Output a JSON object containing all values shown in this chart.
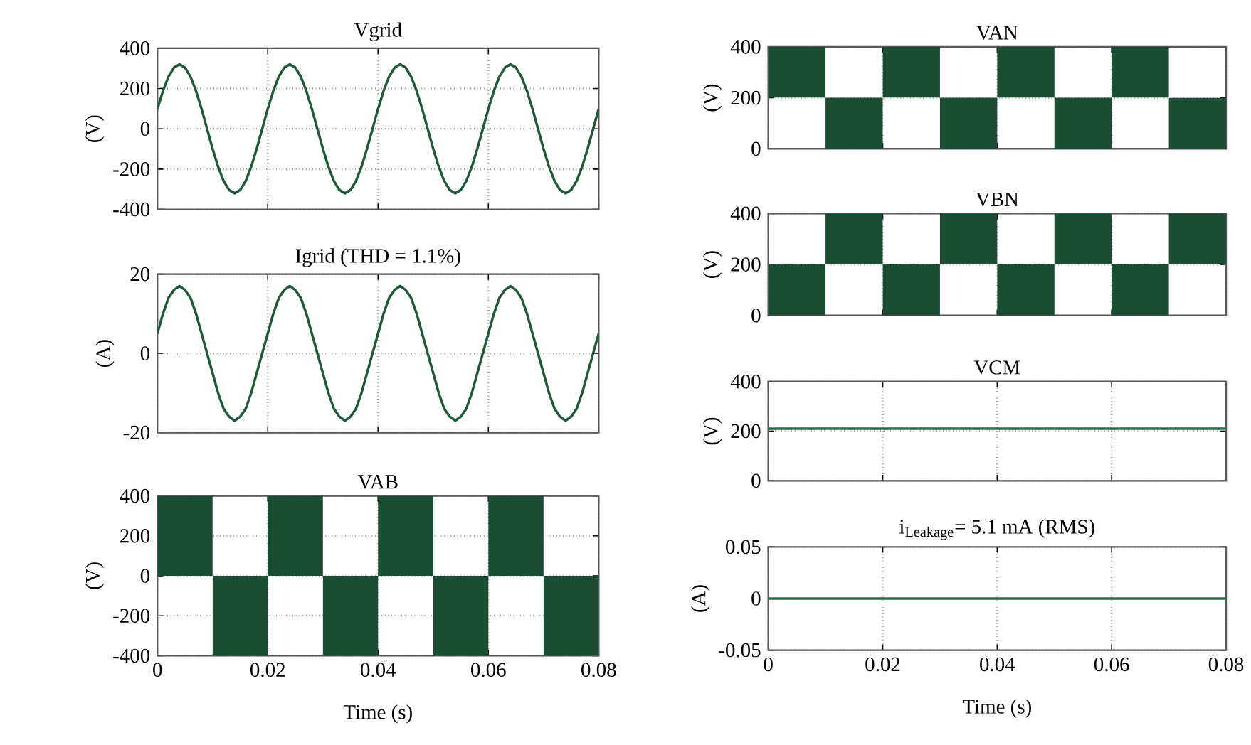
{
  "chart_data": [
    {
      "type": "line",
      "title": "Vgrid",
      "ylabel": "(V)",
      "tick_labels": "y",
      "grid": true,
      "xlim": [
        0,
        0.08
      ],
      "xticks": [
        0,
        0.02,
        0.04,
        0.06,
        0.08
      ],
      "ylim": [
        -400,
        400
      ],
      "yticks": [
        -400,
        -200,
        0,
        200,
        400
      ],
      "x": [
        0,
        0.001,
        0.002,
        0.003,
        0.004,
        0.005,
        0.006,
        0.007,
        0.008,
        0.009,
        0.01,
        0.011,
        0.012,
        0.013,
        0.014,
        0.015,
        0.016,
        0.017,
        0.018,
        0.019,
        0.02,
        0.021,
        0.022,
        0.023,
        0.024,
        0.025,
        0.026,
        0.027,
        0.028,
        0.029,
        0.03,
        0.031,
        0.032,
        0.033,
        0.034,
        0.035,
        0.036,
        0.037,
        0.038,
        0.039,
        0.04,
        0.041,
        0.042,
        0.043,
        0.044,
        0.045,
        0.046,
        0.047,
        0.048,
        0.049,
        0.05,
        0.051,
        0.052,
        0.053,
        0.054,
        0.055,
        0.056,
        0.057,
        0.058,
        0.059,
        0.06,
        0.061,
        0.062,
        0.063,
        0.064,
        0.065,
        0.066,
        0.067,
        0.068,
        0.069,
        0.07,
        0.071,
        0.072,
        0.073,
        0.074,
        0.075,
        0.076,
        0.077,
        0.078,
        0.079,
        0.08
      ],
      "series": [
        {
          "color": "#1e5a3a",
          "values": [
            99,
            188,
            259,
            304,
            320,
            304,
            259,
            188,
            99,
            0,
            -99,
            -188,
            -259,
            -304,
            -320,
            -304,
            -259,
            -188,
            -99,
            0,
            99,
            188,
            259,
            304,
            320,
            304,
            259,
            188,
            99,
            0,
            -99,
            -188,
            -259,
            -304,
            -320,
            -304,
            -259,
            -188,
            -99,
            0,
            99,
            188,
            259,
            304,
            320,
            304,
            259,
            188,
            99,
            0,
            -99,
            -188,
            -259,
            -304,
            -320,
            -304,
            -259,
            -188,
            -99,
            0,
            99,
            188,
            259,
            304,
            320,
            304,
            259,
            188,
            99,
            0,
            -99,
            -188,
            -259,
            -304,
            -320,
            -304,
            -259,
            -188,
            -99,
            0,
            99
          ]
        }
      ]
    },
    {
      "type": "line",
      "title": "Igrid (THD = 1.1%)",
      "ylabel": "(A)",
      "tick_labels": "y",
      "grid": true,
      "xlim": [
        0,
        0.08
      ],
      "xticks": [
        0,
        0.02,
        0.04,
        0.06,
        0.08
      ],
      "ylim": [
        -20,
        20
      ],
      "yticks": [
        -20,
        0,
        20
      ],
      "x": [
        0,
        0.001,
        0.002,
        0.003,
        0.004,
        0.005,
        0.006,
        0.007,
        0.008,
        0.009,
        0.01,
        0.011,
        0.012,
        0.013,
        0.014,
        0.015,
        0.016,
        0.017,
        0.018,
        0.019,
        0.02,
        0.021,
        0.022,
        0.023,
        0.024,
        0.025,
        0.026,
        0.027,
        0.028,
        0.029,
        0.03,
        0.031,
        0.032,
        0.033,
        0.034,
        0.035,
        0.036,
        0.037,
        0.038,
        0.039,
        0.04,
        0.041,
        0.042,
        0.043,
        0.044,
        0.045,
        0.046,
        0.047,
        0.048,
        0.049,
        0.05,
        0.051,
        0.052,
        0.053,
        0.054,
        0.055,
        0.056,
        0.057,
        0.058,
        0.059,
        0.06,
        0.061,
        0.062,
        0.063,
        0.064,
        0.065,
        0.066,
        0.067,
        0.068,
        0.069,
        0.07,
        0.071,
        0.072,
        0.073,
        0.074,
        0.075,
        0.076,
        0.077,
        0.078,
        0.079,
        0.08
      ],
      "series": [
        {
          "color": "#1e5a3a",
          "values": [
            5,
            10,
            14,
            16,
            17,
            16,
            14,
            10,
            5,
            0,
            -5,
            -10,
            -14,
            -16,
            -17,
            -16,
            -14,
            -10,
            -5,
            0,
            5,
            10,
            14,
            16,
            17,
            16,
            14,
            10,
            5,
            0,
            -5,
            -10,
            -14,
            -16,
            -17,
            -16,
            -14,
            -10,
            -5,
            0,
            5,
            10,
            14,
            16,
            17,
            16,
            14,
            10,
            5,
            0,
            -5,
            -10,
            -14,
            -16,
            -17,
            -16,
            -14,
            -10,
            -5,
            0,
            5,
            10,
            14,
            16,
            17,
            16,
            14,
            10,
            5,
            0,
            -5,
            -10,
            -14,
            -16,
            -17,
            -16,
            -14,
            -10,
            -5,
            0,
            5
          ]
        }
      ]
    },
    {
      "type": "bar",
      "title": "VAB",
      "ylabel": "(V)",
      "xlabel": "Time (s)",
      "grid": true,
      "xlim": [
        0,
        0.08
      ],
      "xticks": [
        0,
        0.02,
        0.04,
        0.06,
        0.08
      ],
      "ylim": [
        -400,
        400
      ],
      "yticks": [
        -400,
        -200,
        0,
        200,
        400
      ],
      "color": "#1a4d33",
      "x": [
        0.005,
        0.015,
        0.025,
        0.035,
        0.045,
        0.055,
        0.065,
        0.075
      ],
      "base": [
        0,
        -400,
        0,
        -400,
        0,
        -400,
        0,
        -400
      ],
      "values": [
        400,
        400,
        400,
        400,
        400,
        400,
        400,
        400
      ]
    },
    {
      "type": "bar",
      "title": "VAN",
      "ylabel": "(V)",
      "tick_labels": "y",
      "grid": true,
      "xlim": [
        0,
        0.08
      ],
      "xticks": [
        0,
        0.02,
        0.04,
        0.06,
        0.08
      ],
      "ylim": [
        0,
        400
      ],
      "yticks": [
        0,
        200,
        400
      ],
      "color": "#1a4d33",
      "x": [
        0.005,
        0.015,
        0.025,
        0.035,
        0.045,
        0.055,
        0.065,
        0.075
      ],
      "base": [
        200,
        0,
        200,
        0,
        200,
        0,
        200,
        0
      ],
      "values": [
        200,
        200,
        200,
        200,
        200,
        200,
        200,
        200
      ]
    },
    {
      "type": "bar",
      "title": "VBN",
      "ylabel": "(V)",
      "tick_labels": "y",
      "grid": true,
      "xlim": [
        0,
        0.08
      ],
      "xticks": [
        0,
        0.02,
        0.04,
        0.06,
        0.08
      ],
      "ylim": [
        0,
        400
      ],
      "yticks": [
        0,
        200,
        400
      ],
      "color": "#1a4d33",
      "x": [
        0.005,
        0.015,
        0.025,
        0.035,
        0.045,
        0.055,
        0.065,
        0.075
      ],
      "base": [
        0,
        200,
        0,
        200,
        0,
        200,
        0,
        200
      ],
      "values": [
        200,
        200,
        200,
        200,
        200,
        200,
        200,
        200
      ]
    },
    {
      "type": "line",
      "title": "VCM",
      "ylabel": "(V)",
      "tick_labels": "y",
      "grid": true,
      "xlim": [
        0,
        0.08
      ],
      "xticks": [
        0,
        0.02,
        0.04,
        0.06,
        0.08
      ],
      "ylim": [
        0,
        400
      ],
      "yticks": [
        0,
        200,
        400
      ],
      "x": [
        0,
        0.08
      ],
      "series": [
        {
          "color": "#2e6b4a",
          "values": [
            210,
            210
          ]
        }
      ]
    },
    {
      "type": "line",
      "title": "i$_{Leakage}$= 5.1 mA (RMS)",
      "ylabel": "(A)",
      "xlabel": "Time (s)",
      "grid": true,
      "xlim": [
        0,
        0.08
      ],
      "xticks": [
        0,
        0.02,
        0.04,
        0.06,
        0.08
      ],
      "ylim": [
        -0.05,
        0.05
      ],
      "yticks": [
        -0.05,
        0,
        0.05
      ],
      "x": [
        0,
        0.08
      ],
      "series": [
        {
          "color": "#2e6b4a",
          "values": [
            0,
            0
          ]
        }
      ]
    }
  ]
}
